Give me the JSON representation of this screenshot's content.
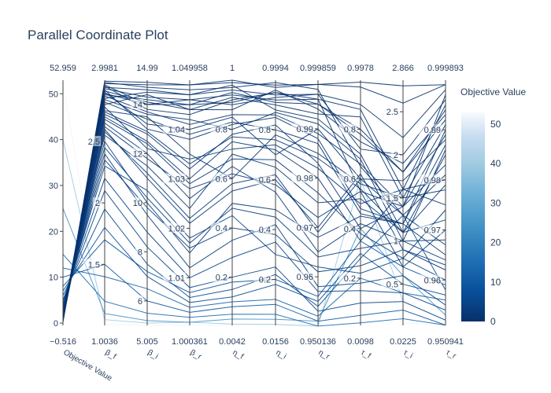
{
  "chart_data": {
    "type": "parallel_coordinates",
    "title": "Parallel Coordinate Plot",
    "colorbar": {
      "title": "Objective Value",
      "range": [
        0,
        53
      ],
      "ticks": [
        "0",
        "10",
        "20",
        "30",
        "40",
        "50"
      ],
      "colorscale": "Blues (reversed)",
      "color_low": "#08306b",
      "color_high": "#f7fbff"
    },
    "dimensions": [
      {
        "label": "Objective Value",
        "range_top": "52.959",
        "range_bottom": "−0.516",
        "min": -0.516,
        "max": 52.959,
        "tick_labels": [
          "0",
          "10",
          "20",
          "30",
          "40",
          "50"
        ],
        "tick_values": [
          0,
          10,
          20,
          30,
          40,
          50
        ]
      },
      {
        "label": "β_f",
        "range_top": "2.9981",
        "range_bottom": "1.0036",
        "min": 1.0036,
        "max": 2.9981,
        "tick_labels": [
          "1.5",
          "2",
          "2.5"
        ],
        "tick_values": [
          1.5,
          2,
          2.5
        ]
      },
      {
        "label": "β_i",
        "range_top": "14.99",
        "range_bottom": "5.005",
        "min": 5.005,
        "max": 14.99,
        "tick_labels": [
          "6",
          "8",
          "10",
          "12",
          "14"
        ],
        "tick_values": [
          6,
          8,
          10,
          12,
          14
        ]
      },
      {
        "label": "β_r",
        "range_top": "1.049958",
        "range_bottom": "1.000361",
        "min": 1.000361,
        "max": 1.049958,
        "tick_labels": [
          "1.01",
          "1.02",
          "1.03",
          "1.04"
        ],
        "tick_values": [
          1.01,
          1.02,
          1.03,
          1.04
        ]
      },
      {
        "label": "η_f",
        "range_top": "1",
        "range_bottom": "0.0042",
        "min": 0.0042,
        "max": 1,
        "tick_labels": [
          "0.2",
          "0.4",
          "0.6",
          "0.8"
        ],
        "tick_values": [
          0.2,
          0.4,
          0.6,
          0.8
        ]
      },
      {
        "label": "η_i",
        "range_top": "0.9994",
        "range_bottom": "0.0156",
        "min": 0.0156,
        "max": 0.9994,
        "tick_labels": [
          "0.2",
          "0.4",
          "0.6",
          "0.8"
        ],
        "tick_values": [
          0.2,
          0.4,
          0.6,
          0.8
        ]
      },
      {
        "label": "η_r",
        "range_top": "0.999859",
        "range_bottom": "0.950136",
        "min": 0.950136,
        "max": 0.999859,
        "tick_labels": [
          "0.96",
          "0.97",
          "0.98",
          "0.99"
        ],
        "tick_values": [
          0.96,
          0.97,
          0.98,
          0.99
        ]
      },
      {
        "label": "τ_f",
        "range_top": "0.9978",
        "range_bottom": "0.0098",
        "min": 0.0098,
        "max": 0.9978,
        "tick_labels": [
          "0.2",
          "0.4",
          "0.6",
          "0.8"
        ],
        "tick_values": [
          0.2,
          0.4,
          0.6,
          0.8
        ]
      },
      {
        "label": "τ_i",
        "range_top": "2.866",
        "range_bottom": "0.0225",
        "min": 0.0225,
        "max": 2.866,
        "tick_labels": [
          "0.5",
          "1",
          "1.5",
          "2",
          "2.5"
        ],
        "tick_values": [
          0.5,
          1,
          1.5,
          2,
          2.5
        ]
      },
      {
        "label": "τ_r",
        "range_top": "0.999893",
        "range_bottom": "0.950941",
        "min": 0.950941,
        "max": 0.999893,
        "tick_labels": [
          "0.96",
          "0.97",
          "0.98",
          "0.99"
        ],
        "tick_values": [
          0.96,
          0.97,
          0.98,
          0.99
        ]
      }
    ],
    "lines": [
      {
        "objective": 0.5,
        "values": [
          0.5,
          2.95,
          13.8,
          1.043,
          0.92,
          0.95,
          0.996,
          0.55,
          1.4,
          0.997
        ]
      },
      {
        "objective": 1.2,
        "values": [
          1.2,
          2.85,
          14.5,
          1.047,
          0.98,
          0.88,
          0.992,
          0.7,
          1.1,
          0.985
        ]
      },
      {
        "objective": 0.8,
        "values": [
          0.8,
          2.7,
          12.5,
          1.03,
          0.75,
          0.72,
          0.98,
          0.35,
          1.6,
          0.975
        ]
      },
      {
        "objective": 2.0,
        "values": [
          2.0,
          2.6,
          11.0,
          1.021,
          0.55,
          0.6,
          0.97,
          0.62,
          0.9,
          0.962
        ]
      },
      {
        "objective": 0.3,
        "values": [
          0.3,
          2.99,
          14.9,
          1.049,
          0.99,
          0.98,
          0.999,
          0.97,
          2.6,
          0.999
        ]
      },
      {
        "objective": 3.5,
        "values": [
          3.5,
          2.4,
          9.5,
          1.012,
          0.35,
          0.42,
          0.958,
          0.18,
          0.6,
          0.955
        ]
      },
      {
        "objective": 1.5,
        "values": [
          1.5,
          2.92,
          13.0,
          1.038,
          0.82,
          0.85,
          0.988,
          0.48,
          1.2,
          0.99
        ]
      },
      {
        "objective": 0.9,
        "values": [
          0.9,
          2.88,
          14.2,
          1.045,
          0.95,
          0.91,
          0.995,
          0.8,
          1.8,
          0.994
        ]
      },
      {
        "objective": 5.0,
        "values": [
          5.0,
          2.1,
          8.2,
          1.008,
          0.2,
          0.25,
          0.953,
          0.1,
          0.3,
          0.952
        ]
      },
      {
        "objective": 2.8,
        "values": [
          2.8,
          2.65,
          12.0,
          1.026,
          0.65,
          0.55,
          0.965,
          0.42,
          1.0,
          0.968
        ]
      },
      {
        "objective": 0.6,
        "values": [
          0.6,
          2.98,
          14.7,
          1.048,
          0.97,
          0.99,
          0.998,
          0.65,
          1.3,
          0.981
        ]
      },
      {
        "objective": 1.8,
        "values": [
          1.8,
          2.75,
          13.5,
          1.035,
          0.6,
          0.78,
          0.985,
          0.58,
          1.5,
          0.978
        ]
      },
      {
        "objective": 4.2,
        "values": [
          4.2,
          2.3,
          10.5,
          1.018,
          0.45,
          0.3,
          0.962,
          0.22,
          0.8,
          0.96
        ]
      },
      {
        "objective": 0.4,
        "values": [
          0.4,
          2.96,
          14.0,
          1.046,
          0.9,
          0.93,
          0.997,
          0.9,
          2.2,
          0.998
        ]
      },
      {
        "objective": 2.4,
        "values": [
          2.4,
          2.55,
          11.5,
          1.024,
          0.7,
          0.65,
          0.975,
          0.52,
          1.1,
          0.972
        ]
      },
      {
        "objective": 7.0,
        "values": [
          7.0,
          1.8,
          7.0,
          1.005,
          0.12,
          0.18,
          0.955,
          0.3,
          0.5,
          0.957
        ]
      },
      {
        "objective": 1.0,
        "values": [
          1.0,
          2.9,
          13.2,
          1.04,
          0.85,
          0.7,
          0.99,
          0.6,
          1.7,
          0.988
        ]
      },
      {
        "objective": 3.0,
        "values": [
          3.0,
          2.5,
          10.0,
          1.015,
          0.5,
          0.48,
          0.968,
          0.45,
          1.2,
          0.965
        ]
      },
      {
        "objective": 0.7,
        "values": [
          0.7,
          2.8,
          14.4,
          1.044,
          0.88,
          0.96,
          0.994,
          0.75,
          1.9,
          0.993
        ]
      },
      {
        "objective": 1.4,
        "values": [
          1.4,
          2.72,
          12.8,
          1.032,
          0.78,
          0.82,
          0.983,
          0.4,
          1.4,
          0.983
        ]
      },
      {
        "objective": 10.0,
        "values": [
          10.0,
          1.5,
          6.0,
          1.003,
          0.08,
          0.1,
          0.951,
          0.05,
          0.2,
          0.951
        ]
      },
      {
        "objective": 0.2,
        "values": [
          0.2,
          2.97,
          14.8,
          1.049,
          1.0,
          0.97,
          0.999,
          0.99,
          2.8,
          0.999
        ]
      },
      {
        "objective": 2.2,
        "values": [
          2.2,
          2.62,
          11.8,
          1.028,
          0.62,
          0.58,
          0.972,
          0.55,
          0.7,
          0.97
        ]
      },
      {
        "objective": 1.1,
        "values": [
          1.1,
          2.84,
          13.6,
          1.042,
          0.8,
          0.87,
          0.991,
          0.68,
          1.0,
          0.986
        ]
      },
      {
        "objective": 6.0,
        "values": [
          6.0,
          1.95,
          7.5,
          1.006,
          0.15,
          0.22,
          0.954,
          0.28,
          1.3,
          0.958
        ]
      },
      {
        "objective": 0.9,
        "values": [
          0.9,
          2.91,
          14.1,
          1.044,
          0.93,
          0.9,
          0.993,
          0.85,
          1.5,
          0.991
        ]
      },
      {
        "objective": 3.8,
        "values": [
          3.8,
          2.35,
          9.8,
          1.016,
          0.4,
          0.38,
          0.961,
          0.25,
          0.9,
          0.963
        ]
      },
      {
        "objective": 1.6,
        "values": [
          1.6,
          2.78,
          12.2,
          1.034,
          0.72,
          0.74,
          0.982,
          0.5,
          1.6,
          0.98
        ]
      },
      {
        "objective": 0.5,
        "values": [
          0.5,
          2.94,
          14.6,
          1.047,
          0.96,
          0.94,
          0.997,
          0.72,
          2.0,
          0.996
        ]
      },
      {
        "objective": 2.6,
        "values": [
          2.6,
          2.58,
          11.2,
          1.022,
          0.58,
          0.62,
          0.969,
          0.6,
          1.3,
          0.967
        ]
      },
      {
        "objective": 4.8,
        "values": [
          4.8,
          2.2,
          8.8,
          1.01,
          0.28,
          0.35,
          0.957,
          0.15,
          0.4,
          0.954
        ]
      },
      {
        "objective": 1.3,
        "values": [
          1.3,
          2.82,
          13.4,
          1.039,
          0.83,
          0.8,
          0.987,
          0.46,
          1.2,
          0.987
        ]
      },
      {
        "objective": 0.8,
        "values": [
          0.8,
          2.93,
          14.3,
          1.046,
          0.94,
          0.92,
          0.996,
          0.88,
          1.6,
          0.995
        ]
      },
      {
        "objective": 2.0,
        "values": [
          2.0,
          2.68,
          12.4,
          1.029,
          0.68,
          0.68,
          0.977,
          0.38,
          0.8,
          0.974
        ]
      },
      {
        "objective": 15.0,
        "values": [
          15.0,
          1.2,
          5.5,
          1.002,
          0.05,
          0.06,
          0.95,
          0.02,
          0.1,
          0.951
        ]
      },
      {
        "objective": 1.7,
        "values": [
          1.7,
          2.74,
          12.9,
          1.033,
          0.77,
          0.76,
          0.984,
          0.56,
          1.1,
          0.979
        ]
      },
      {
        "objective": 0.6,
        "values": [
          0.6,
          2.89,
          14.0,
          1.045,
          0.91,
          0.95,
          0.995,
          0.78,
          1.8,
          0.992
        ]
      },
      {
        "objective": 3.2,
        "values": [
          3.2,
          2.45,
          10.2,
          1.017,
          0.48,
          0.45,
          0.964,
          0.32,
          1.0,
          0.964
        ]
      },
      {
        "objective": 1.0,
        "values": [
          1.0,
          2.87,
          13.7,
          1.041,
          0.86,
          0.86,
          0.989,
          0.66,
          1.4,
          0.989
        ]
      },
      {
        "objective": 25.0,
        "values": [
          25.0,
          1.1,
          5.2,
          1.001,
          0.03,
          0.04,
          0.951,
          0.4,
          0.6,
          0.953
        ]
      },
      {
        "objective": 40.0,
        "values": [
          40.0,
          1.05,
          5.1,
          1.001,
          0.01,
          0.02,
          0.95,
          0.6,
          0.3,
          0.952
        ]
      },
      {
        "objective": 52.0,
        "values": [
          52.0,
          1.01,
          5.01,
          1.0004,
          0.005,
          0.016,
          0.9502,
          0.5,
          0.05,
          0.951
        ]
      },
      {
        "objective": 12.0,
        "values": [
          12.0,
          1.4,
          6.5,
          1.004,
          0.1,
          0.12,
          0.952,
          0.2,
          0.4,
          0.956
        ]
      },
      {
        "objective": 8.0,
        "values": [
          8.0,
          1.7,
          7.2,
          1.007,
          0.18,
          0.2,
          0.956,
          0.35,
          0.7,
          0.959
        ]
      }
    ]
  }
}
